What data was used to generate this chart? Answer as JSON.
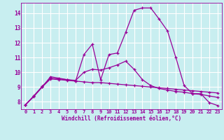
{
  "xlabel": "Windchill (Refroidissement éolien,°C)",
  "bg_color": "#c8eef0",
  "line_color": "#990099",
  "grid_color": "#ffffff",
  "x_ticks": [
    0,
    1,
    2,
    3,
    4,
    5,
    6,
    7,
    8,
    9,
    10,
    11,
    12,
    13,
    14,
    15,
    16,
    17,
    18,
    19,
    20,
    21,
    22,
    23
  ],
  "y_ticks": [
    8,
    9,
    10,
    11,
    12,
    13,
    14
  ],
  "xlim": [
    -0.5,
    23.5
  ],
  "ylim": [
    7.5,
    14.7
  ],
  "series1_x": [
    0,
    1,
    2,
    3,
    4,
    5,
    6,
    7,
    8,
    9,
    10,
    11,
    12,
    13,
    14,
    15,
    16,
    17,
    18,
    19,
    20,
    21,
    22,
    23
  ],
  "series1_y": [
    7.8,
    8.4,
    9.0,
    9.7,
    9.6,
    9.5,
    9.4,
    11.2,
    11.9,
    9.5,
    11.2,
    11.3,
    12.7,
    14.2,
    14.35,
    14.35,
    13.6,
    12.8,
    11.0,
    9.1,
    8.55,
    8.55,
    7.95,
    7.75
  ],
  "series2_x": [
    0,
    1,
    2,
    3,
    4,
    5,
    6,
    7,
    8,
    9,
    10,
    11,
    12,
    13,
    14,
    15,
    16,
    17,
    18,
    19,
    20,
    21,
    22,
    23
  ],
  "series2_y": [
    7.8,
    8.4,
    9.05,
    9.6,
    9.55,
    9.5,
    9.45,
    10.0,
    10.2,
    10.15,
    10.3,
    10.5,
    10.75,
    10.2,
    9.5,
    9.1,
    8.9,
    8.8,
    8.7,
    8.65,
    8.55,
    8.5,
    8.4,
    8.3
  ],
  "series3_x": [
    0,
    1,
    2,
    3,
    4,
    5,
    6,
    7,
    8,
    9,
    10,
    11,
    12,
    13,
    14,
    15,
    16,
    17,
    18,
    19,
    20,
    21,
    22,
    23
  ],
  "series3_y": [
    7.8,
    8.35,
    9.0,
    9.55,
    9.5,
    9.45,
    9.4,
    9.35,
    9.3,
    9.3,
    9.25,
    9.2,
    9.15,
    9.1,
    9.05,
    9.0,
    8.95,
    8.9,
    8.85,
    8.8,
    8.75,
    8.7,
    8.65,
    8.6
  ]
}
